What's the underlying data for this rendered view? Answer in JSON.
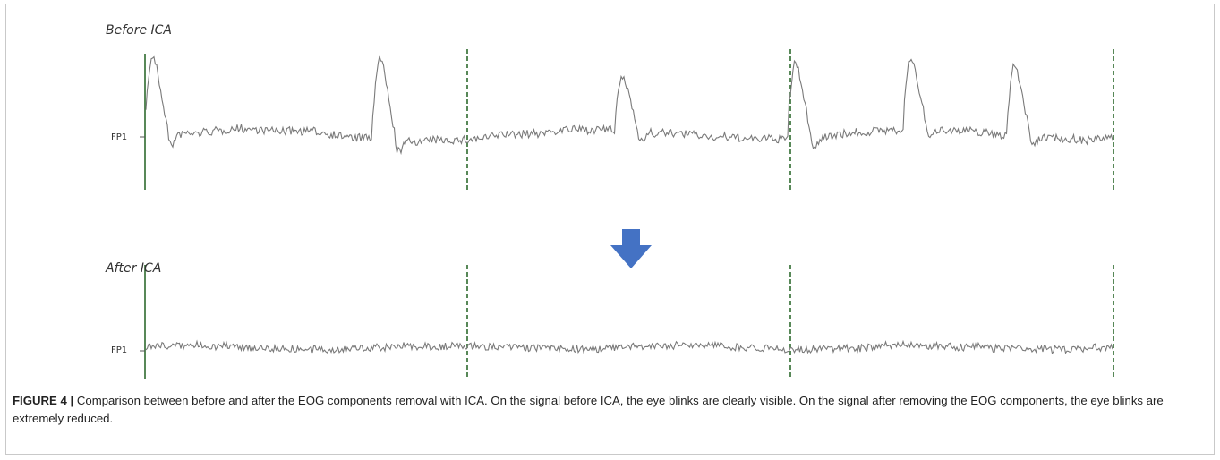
{
  "figure": {
    "before": {
      "title": "Before ICA",
      "channel": "FP1"
    },
    "after": {
      "title": "After ICA",
      "channel": "FP1"
    },
    "arrow_icon": "down-arrow-icon",
    "colors": {
      "trace": "#7a7a7a",
      "marker": "#2e6b2e",
      "arrow": "#4472c4"
    },
    "caption": {
      "label": "FIGURE 4 |",
      "text": "Comparison between before and after the EOG components removal with ICA. On the signal before ICA, the eye blinks are clearly visible. On the signal after removing the EOG components, the eye blinks are extremely reduced."
    }
  }
}
